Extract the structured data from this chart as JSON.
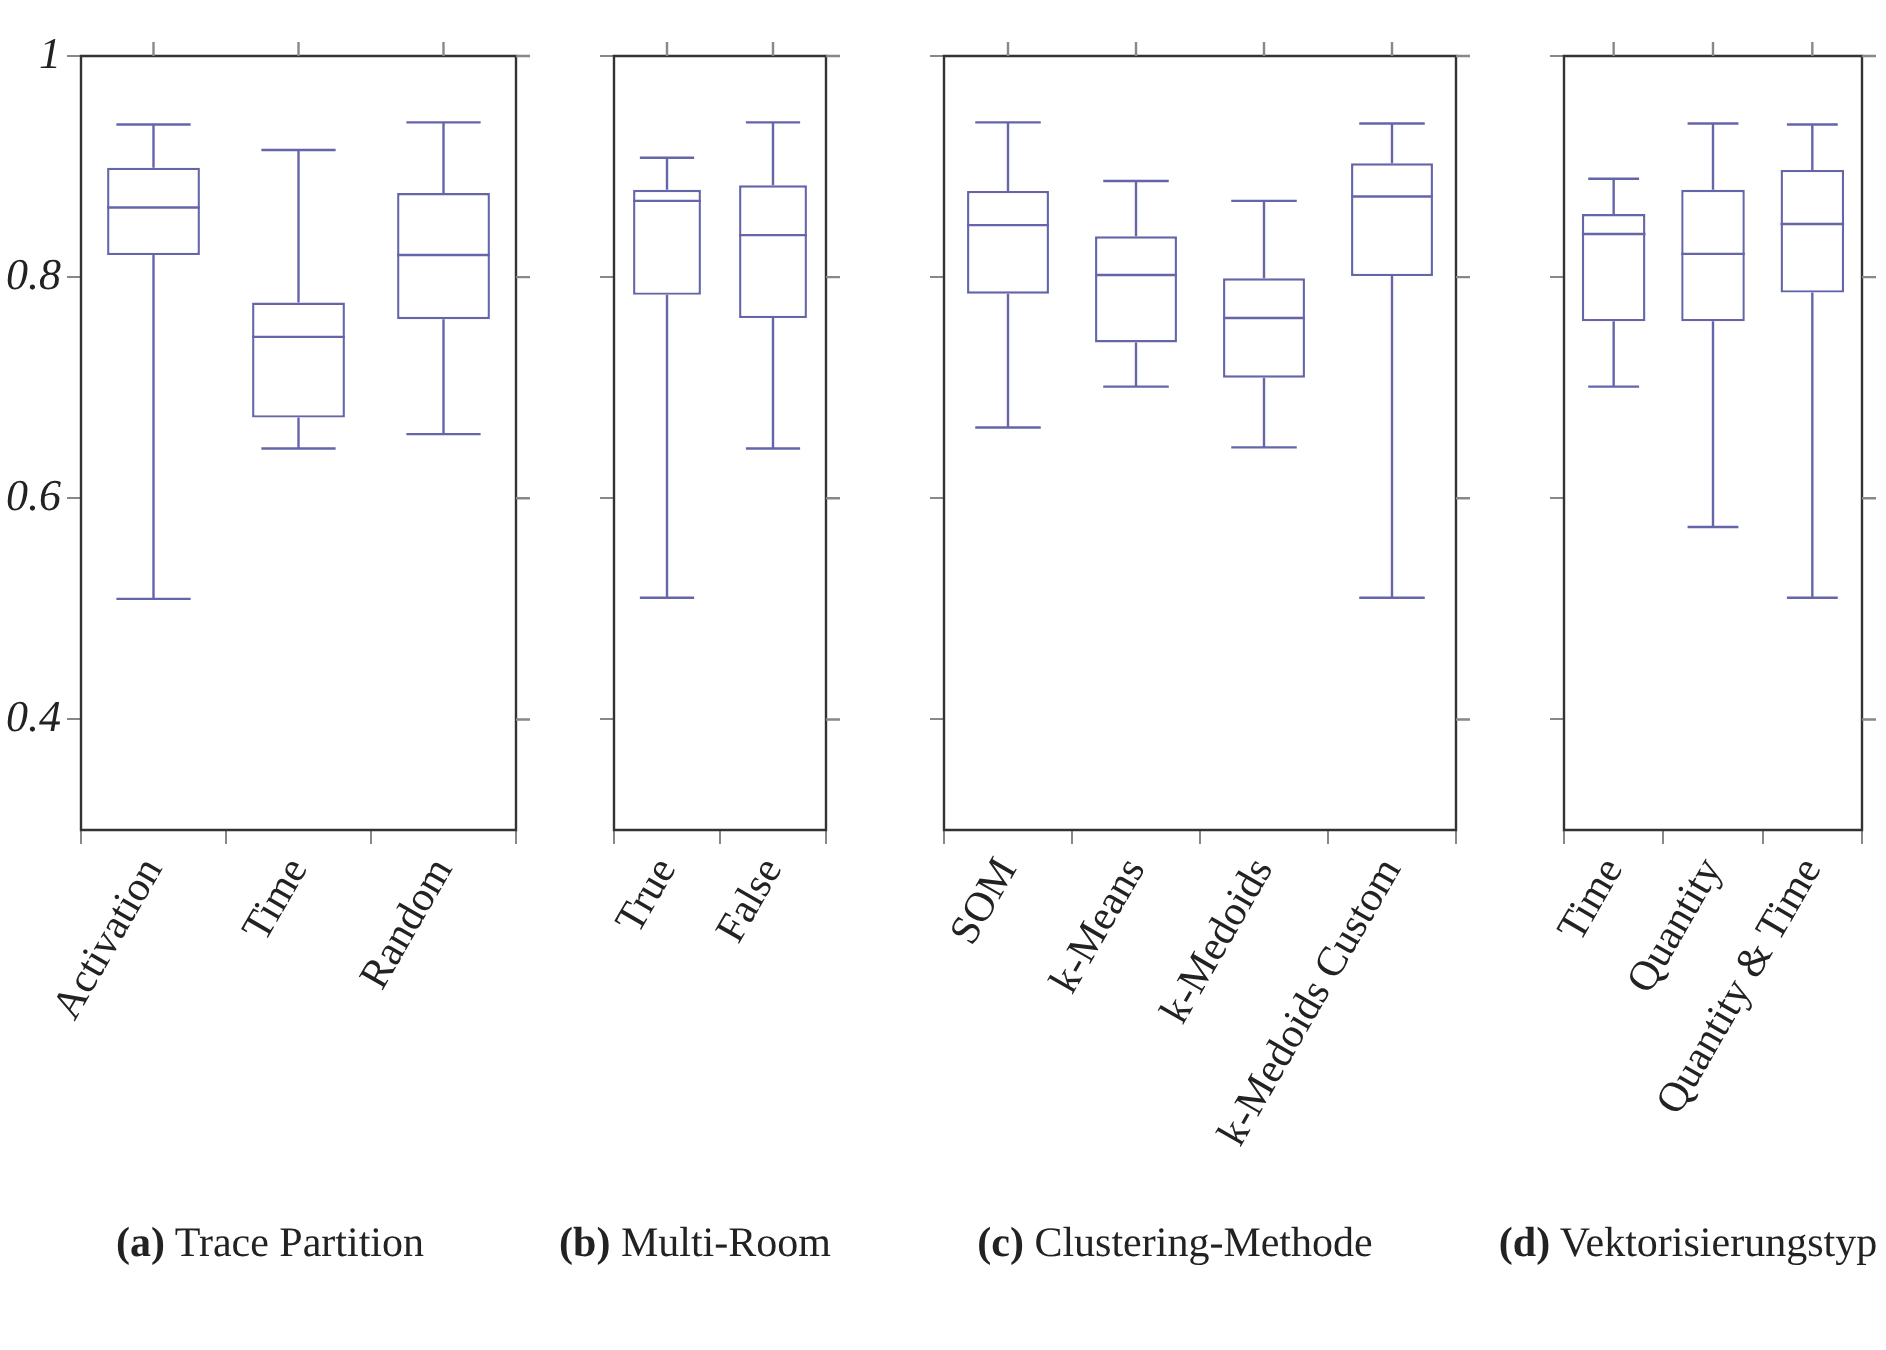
{
  "chart_data": [
    {
      "type": "box",
      "title": "(a) Trace Partition",
      "categories": [
        "Activation",
        "Time",
        "Random"
      ],
      "ylim": [
        0.3,
        1
      ],
      "yticks": [
        0.4,
        0.6,
        0.8,
        1
      ],
      "grid": false,
      "legend": false,
      "series": [
        {
          "color": "#6565aa",
          "boxes": [
            {
              "low": 0.509,
              "q1": 0.82,
              "median": 0.863,
              "q3": 0.899,
              "high": 0.938
            },
            {
              "low": 0.645,
              "q1": 0.673,
              "median": 0.746,
              "q3": 0.777,
              "high": 0.915
            },
            {
              "low": 0.658,
              "q1": 0.762,
              "median": 0.82,
              "q3": 0.876,
              "high": 0.94
            }
          ]
        }
      ]
    },
    {
      "type": "box",
      "title": "(b) Multi-Room",
      "categories": [
        "True",
        "False"
      ],
      "ylim": [
        0.3,
        1
      ],
      "yticks": [
        0.4,
        0.6,
        0.8,
        1
      ],
      "tick_labels": "x",
      "grid": false,
      "legend": false,
      "series": [
        {
          "color": "#6565aa",
          "boxes": [
            {
              "low": 0.51,
              "q1": 0.784,
              "median": 0.869,
              "q3": 0.879,
              "high": 0.908
            },
            {
              "low": 0.645,
              "q1": 0.763,
              "median": 0.838,
              "q3": 0.883,
              "high": 0.94
            }
          ]
        }
      ]
    },
    {
      "type": "box",
      "title": "(c) Clustering-Methode",
      "categories": [
        "SOM",
        "k-Means",
        "k-Medoids",
        "k-Medoids Custom"
      ],
      "ylim": [
        0.3,
        1
      ],
      "yticks": [
        0.4,
        0.6,
        0.8,
        1
      ],
      "tick_labels": "x",
      "grid": false,
      "legend": false,
      "series": [
        {
          "color": "#6565aa",
          "boxes": [
            {
              "low": 0.664,
              "q1": 0.785,
              "median": 0.847,
              "q3": 0.878,
              "high": 0.94
            },
            {
              "low": 0.701,
              "q1": 0.741,
              "median": 0.802,
              "q3": 0.837,
              "high": 0.887
            },
            {
              "low": 0.646,
              "q1": 0.709,
              "median": 0.763,
              "q3": 0.799,
              "high": 0.869
            },
            {
              "low": 0.51,
              "q1": 0.801,
              "median": 0.873,
              "q3": 0.903,
              "high": 0.939
            }
          ]
        }
      ]
    },
    {
      "type": "box",
      "title": "(d) Vektorisierungstyp",
      "categories": [
        "Time",
        "Quantity",
        "Quantity & Time"
      ],
      "ylim": [
        0.3,
        1
      ],
      "yticks": [
        0.4,
        0.6,
        0.8,
        1
      ],
      "tick_labels": "x",
      "grid": false,
      "legend": false,
      "series": [
        {
          "color": "#6565aa",
          "boxes": [
            {
              "low": 0.701,
              "q1": 0.76,
              "median": 0.839,
              "q3": 0.857,
              "high": 0.889
            },
            {
              "low": 0.574,
              "q1": 0.76,
              "median": 0.821,
              "q3": 0.879,
              "high": 0.939
            },
            {
              "low": 0.51,
              "q1": 0.786,
              "median": 0.848,
              "q3": 0.897,
              "high": 0.938
            }
          ]
        }
      ]
    }
  ]
}
